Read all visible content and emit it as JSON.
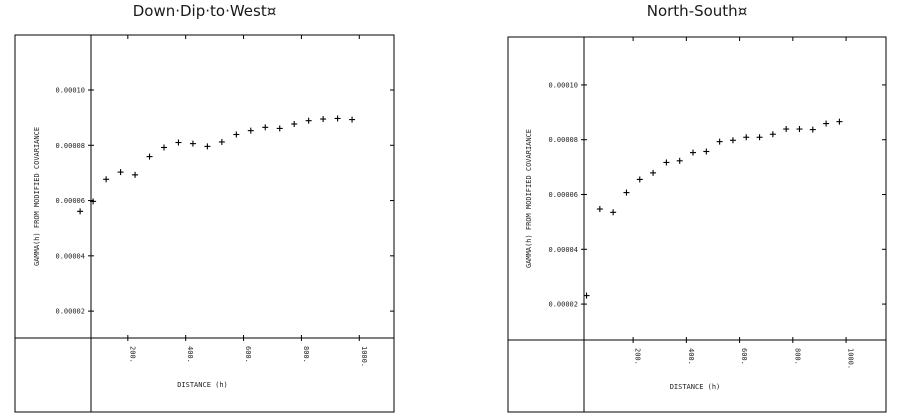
{
  "chart_data": [
    {
      "type": "scatter",
      "title": "Down·Dip·to·West¤",
      "xlabel": "DISTANCE (h)",
      "ylabel": "GAMMA(h) FROM MODIFIED COVARIANCE",
      "xlim": [
        -190,
        1120
      ],
      "ylim": [
        -1.65e-05,
        0.0001199
      ],
      "x_ticks": [
        "200.",
        "400.",
        "600.",
        "800.",
        "1000."
      ],
      "y_ticks": [
        "0.00002",
        "0.00004",
        "0.00006",
        "0.00008",
        "0.00010"
      ],
      "x_tick_values": [
        200,
        400,
        600,
        800,
        1000
      ],
      "y_tick_values": [
        2e-05,
        4e-05,
        6e-05,
        8e-05,
        0.0001
      ],
      "grid": false,
      "marker": "+",
      "x": [
        35,
        80,
        125,
        175,
        225,
        275,
        325,
        375,
        425,
        475,
        525,
        575,
        625,
        675,
        725,
        775,
        825,
        875,
        925,
        975
      ],
      "y": [
        5.61e-05,
        5.97e-05,
        6.77e-05,
        7.03e-05,
        6.93e-05,
        7.59e-05,
        7.92e-05,
        8.1e-05,
        8.06e-05,
        7.96e-05,
        8.12e-05,
        8.39e-05,
        8.53e-05,
        8.65e-05,
        8.61e-05,
        8.77e-05,
        8.89e-05,
        8.95e-05,
        8.97e-05,
        8.93e-05
      ]
    },
    {
      "type": "scatter",
      "title": "North-South¤",
      "xlabel": "DISTANCE (h)",
      "ylabel": "GAMMA(h) FROM MODIFIED COVARIANCE",
      "xlim": [
        -270,
        1150
      ],
      "ylim": [
        -1.94e-05,
        0.0001175
      ],
      "x_ticks": [
        "200.",
        "400.",
        "600.",
        "800.",
        "1000."
      ],
      "y_ticks": [
        "0.00002",
        "0.00004",
        "0.00006",
        "0.00008",
        "0.00010"
      ],
      "x_tick_values": [
        200,
        400,
        600,
        800,
        1000
      ],
      "y_tick_values": [
        2e-05,
        4e-05,
        6e-05,
        8e-05,
        0.0001
      ],
      "grid": false,
      "marker": "+",
      "x": [
        25,
        75,
        125,
        175,
        225,
        275,
        325,
        375,
        425,
        475,
        525,
        575,
        625,
        675,
        725,
        775,
        825,
        875,
        925,
        975
      ],
      "y": [
        2.31e-05,
        5.47e-05,
        5.35e-05,
        6.07e-05,
        6.55e-05,
        6.79e-05,
        7.17e-05,
        7.23e-05,
        7.53e-05,
        7.57e-05,
        7.93e-05,
        7.98e-05,
        8.09e-05,
        8.09e-05,
        8.2e-05,
        8.39e-05,
        8.39e-05,
        8.37e-05,
        8.59e-05,
        8.66e-05
      ]
    }
  ]
}
